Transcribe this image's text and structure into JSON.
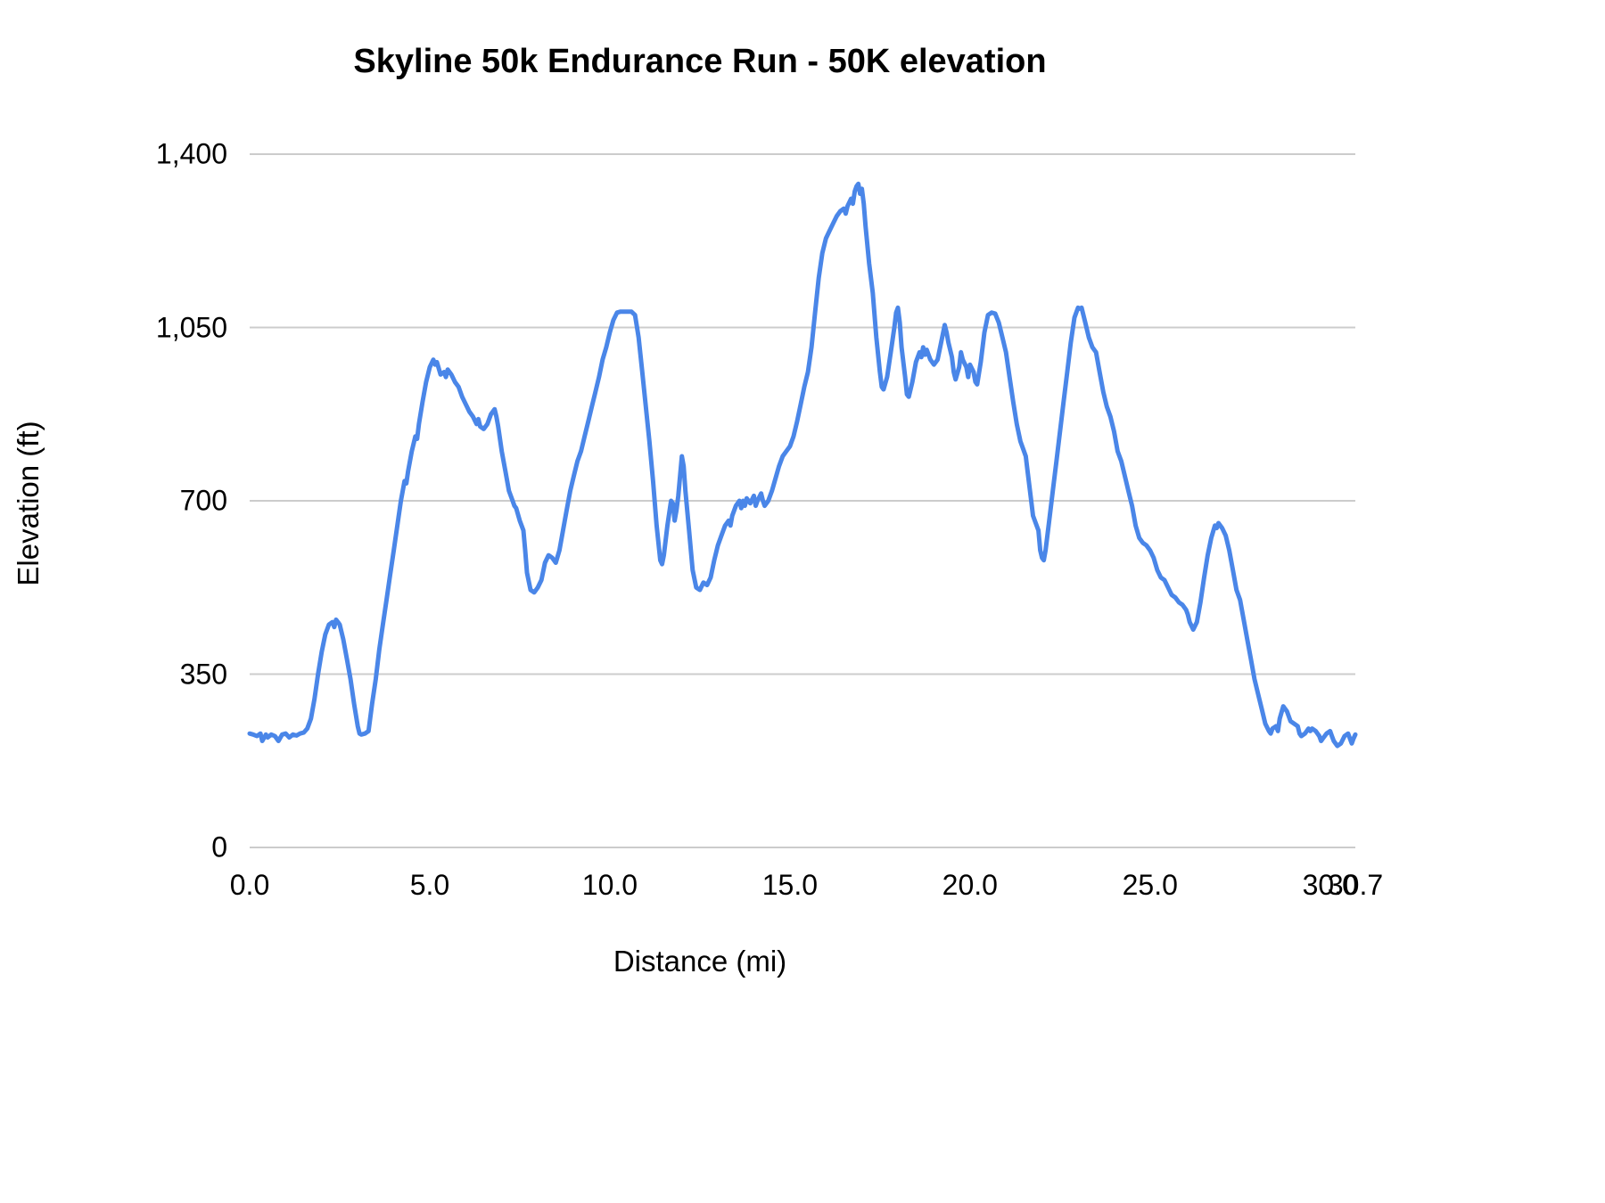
{
  "chart_data": {
    "type": "line",
    "title": "Skyline 50k Endurance Run - 50K elevation",
    "xlabel": "Distance (mi)",
    "ylabel": "Elevation (ft)",
    "xlim": [
      0,
      30.7
    ],
    "ylim": [
      0,
      1400
    ],
    "grid": true,
    "legend": "none",
    "line_color": "#4a86e8",
    "gridline_color": "#cccccc",
    "y_ticks": [
      {
        "value": 0,
        "label": "0"
      },
      {
        "value": 350,
        "label": "350"
      },
      {
        "value": 700,
        "label": "700"
      },
      {
        "value": 1050,
        "label": "1,050"
      },
      {
        "value": 1400,
        "label": "1,400"
      }
    ],
    "x_ticks": [
      {
        "value": 0,
        "label": "0.0"
      },
      {
        "value": 5,
        "label": "5.0"
      },
      {
        "value": 10,
        "label": "10.0"
      },
      {
        "value": 15,
        "label": "15.0"
      },
      {
        "value": 20,
        "label": "20.0"
      },
      {
        "value": 25,
        "label": "25.0"
      },
      {
        "value": 30,
        "label": "30.0"
      },
      {
        "value": 30.7,
        "label": "30.7"
      }
    ],
    "series_name": "50K elevation",
    "points": [
      [
        0.0,
        230
      ],
      [
        0.1,
        228
      ],
      [
        0.2,
        225
      ],
      [
        0.3,
        230
      ],
      [
        0.35,
        215
      ],
      [
        0.45,
        228
      ],
      [
        0.5,
        222
      ],
      [
        0.6,
        228
      ],
      [
        0.7,
        225
      ],
      [
        0.8,
        215
      ],
      [
        0.9,
        228
      ],
      [
        1.0,
        230
      ],
      [
        1.1,
        222
      ],
      [
        1.2,
        228
      ],
      [
        1.3,
        226
      ],
      [
        1.4,
        230
      ],
      [
        1.5,
        232
      ],
      [
        1.6,
        240
      ],
      [
        1.7,
        260
      ],
      [
        1.8,
        300
      ],
      [
        1.9,
        350
      ],
      [
        2.0,
        395
      ],
      [
        2.1,
        430
      ],
      [
        2.2,
        450
      ],
      [
        2.3,
        455
      ],
      [
        2.35,
        445
      ],
      [
        2.4,
        460
      ],
      [
        2.45,
        455
      ],
      [
        2.5,
        450
      ],
      [
        2.6,
        420
      ],
      [
        2.7,
        380
      ],
      [
        2.8,
        340
      ],
      [
        2.9,
        290
      ],
      [
        3.0,
        245
      ],
      [
        3.05,
        230
      ],
      [
        3.1,
        228
      ],
      [
        3.2,
        230
      ],
      [
        3.3,
        235
      ],
      [
        3.4,
        290
      ],
      [
        3.5,
        340
      ],
      [
        3.6,
        400
      ],
      [
        3.7,
        450
      ],
      [
        3.8,
        500
      ],
      [
        3.9,
        550
      ],
      [
        4.0,
        600
      ],
      [
        4.1,
        650
      ],
      [
        4.2,
        700
      ],
      [
        4.3,
        740
      ],
      [
        4.35,
        735
      ],
      [
        4.4,
        760
      ],
      [
        4.5,
        800
      ],
      [
        4.6,
        830
      ],
      [
        4.65,
        825
      ],
      [
        4.7,
        855
      ],
      [
        4.8,
        900
      ],
      [
        4.9,
        940
      ],
      [
        5.0,
        970
      ],
      [
        5.1,
        985
      ],
      [
        5.15,
        975
      ],
      [
        5.2,
        980
      ],
      [
        5.3,
        955
      ],
      [
        5.4,
        960
      ],
      [
        5.45,
        950
      ],
      [
        5.5,
        965
      ],
      [
        5.6,
        955
      ],
      [
        5.7,
        940
      ],
      [
        5.8,
        930
      ],
      [
        5.9,
        910
      ],
      [
        6.0,
        895
      ],
      [
        6.1,
        880
      ],
      [
        6.2,
        870
      ],
      [
        6.3,
        855
      ],
      [
        6.35,
        865
      ],
      [
        6.4,
        850
      ],
      [
        6.5,
        845
      ],
      [
        6.6,
        855
      ],
      [
        6.7,
        875
      ],
      [
        6.8,
        885
      ],
      [
        6.85,
        870
      ],
      [
        6.9,
        850
      ],
      [
        7.0,
        800
      ],
      [
        7.1,
        760
      ],
      [
        7.2,
        720
      ],
      [
        7.3,
        700
      ],
      [
        7.35,
        690
      ],
      [
        7.4,
        685
      ],
      [
        7.5,
        660
      ],
      [
        7.6,
        640
      ],
      [
        7.65,
        600
      ],
      [
        7.7,
        555
      ],
      [
        7.8,
        520
      ],
      [
        7.9,
        515
      ],
      [
        8.0,
        525
      ],
      [
        8.1,
        540
      ],
      [
        8.2,
        575
      ],
      [
        8.3,
        590
      ],
      [
        8.4,
        585
      ],
      [
        8.5,
        575
      ],
      [
        8.6,
        600
      ],
      [
        8.7,
        640
      ],
      [
        8.8,
        680
      ],
      [
        8.9,
        720
      ],
      [
        9.0,
        750
      ],
      [
        9.1,
        780
      ],
      [
        9.2,
        800
      ],
      [
        9.3,
        830
      ],
      [
        9.4,
        860
      ],
      [
        9.5,
        890
      ],
      [
        9.6,
        920
      ],
      [
        9.7,
        950
      ],
      [
        9.8,
        985
      ],
      [
        9.9,
        1010
      ],
      [
        10.0,
        1040
      ],
      [
        10.1,
        1065
      ],
      [
        10.2,
        1080
      ],
      [
        10.3,
        1082
      ],
      [
        10.4,
        1082
      ],
      [
        10.5,
        1082
      ],
      [
        10.6,
        1082
      ],
      [
        10.7,
        1075
      ],
      [
        10.8,
        1030
      ],
      [
        10.9,
        960
      ],
      [
        11.0,
        890
      ],
      [
        11.1,
        820
      ],
      [
        11.2,
        740
      ],
      [
        11.3,
        650
      ],
      [
        11.4,
        580
      ],
      [
        11.45,
        572
      ],
      [
        11.5,
        590
      ],
      [
        11.6,
        650
      ],
      [
        11.7,
        700
      ],
      [
        11.75,
        695
      ],
      [
        11.8,
        660
      ],
      [
        11.85,
        680
      ],
      [
        11.9,
        710
      ],
      [
        11.95,
        750
      ],
      [
        12.0,
        790
      ],
      [
        12.05,
        770
      ],
      [
        12.1,
        720
      ],
      [
        12.2,
        640
      ],
      [
        12.3,
        560
      ],
      [
        12.4,
        525
      ],
      [
        12.5,
        520
      ],
      [
        12.6,
        535
      ],
      [
        12.7,
        530
      ],
      [
        12.8,
        545
      ],
      [
        12.9,
        580
      ],
      [
        13.0,
        610
      ],
      [
        13.1,
        630
      ],
      [
        13.2,
        650
      ],
      [
        13.3,
        660
      ],
      [
        13.35,
        650
      ],
      [
        13.4,
        670
      ],
      [
        13.5,
        690
      ],
      [
        13.6,
        700
      ],
      [
        13.65,
        685
      ],
      [
        13.7,
        700
      ],
      [
        13.75,
        690
      ],
      [
        13.8,
        705
      ],
      [
        13.9,
        695
      ],
      [
        14.0,
        710
      ],
      [
        14.05,
        690
      ],
      [
        14.1,
        700
      ],
      [
        14.2,
        715
      ],
      [
        14.25,
        700
      ],
      [
        14.3,
        690
      ],
      [
        14.4,
        700
      ],
      [
        14.5,
        720
      ],
      [
        14.6,
        745
      ],
      [
        14.7,
        770
      ],
      [
        14.8,
        790
      ],
      [
        14.9,
        800
      ],
      [
        15.0,
        810
      ],
      [
        15.1,
        830
      ],
      [
        15.2,
        860
      ],
      [
        15.3,
        895
      ],
      [
        15.4,
        930
      ],
      [
        15.5,
        960
      ],
      [
        15.6,
        1010
      ],
      [
        15.7,
        1080
      ],
      [
        15.8,
        1150
      ],
      [
        15.9,
        1200
      ],
      [
        16.0,
        1230
      ],
      [
        16.1,
        1245
      ],
      [
        16.2,
        1260
      ],
      [
        16.3,
        1275
      ],
      [
        16.4,
        1285
      ],
      [
        16.5,
        1290
      ],
      [
        16.55,
        1280
      ],
      [
        16.6,
        1295
      ],
      [
        16.7,
        1310
      ],
      [
        16.75,
        1300
      ],
      [
        16.8,
        1325
      ],
      [
        16.85,
        1335
      ],
      [
        16.9,
        1340
      ],
      [
        16.95,
        1320
      ],
      [
        17.0,
        1330
      ],
      [
        17.05,
        1300
      ],
      [
        17.1,
        1255
      ],
      [
        17.2,
        1180
      ],
      [
        17.3,
        1120
      ],
      [
        17.4,
        1030
      ],
      [
        17.5,
        960
      ],
      [
        17.55,
        930
      ],
      [
        17.6,
        925
      ],
      [
        17.7,
        950
      ],
      [
        17.8,
        1000
      ],
      [
        17.9,
        1050
      ],
      [
        17.95,
        1080
      ],
      [
        18.0,
        1090
      ],
      [
        18.05,
        1060
      ],
      [
        18.1,
        1010
      ],
      [
        18.2,
        950
      ],
      [
        18.25,
        915
      ],
      [
        18.3,
        910
      ],
      [
        18.4,
        940
      ],
      [
        18.5,
        980
      ],
      [
        18.6,
        1000
      ],
      [
        18.65,
        990
      ],
      [
        18.7,
        1010
      ],
      [
        18.75,
        995
      ],
      [
        18.8,
        1005
      ],
      [
        18.9,
        985
      ],
      [
        19.0,
        975
      ],
      [
        19.1,
        985
      ],
      [
        19.2,
        1020
      ],
      [
        19.3,
        1055
      ],
      [
        19.35,
        1040
      ],
      [
        19.4,
        1020
      ],
      [
        19.5,
        990
      ],
      [
        19.55,
        960
      ],
      [
        19.6,
        945
      ],
      [
        19.7,
        970
      ],
      [
        19.75,
        1000
      ],
      [
        19.8,
        985
      ],
      [
        19.9,
        970
      ],
      [
        19.95,
        950
      ],
      [
        20.0,
        975
      ],
      [
        20.1,
        960
      ],
      [
        20.15,
        940
      ],
      [
        20.2,
        935
      ],
      [
        20.3,
        980
      ],
      [
        20.4,
        1040
      ],
      [
        20.5,
        1075
      ],
      [
        20.6,
        1080
      ],
      [
        20.7,
        1078
      ],
      [
        20.8,
        1060
      ],
      [
        20.9,
        1030
      ],
      [
        21.0,
        1000
      ],
      [
        21.1,
        950
      ],
      [
        21.2,
        900
      ],
      [
        21.3,
        855
      ],
      [
        21.4,
        820
      ],
      [
        21.5,
        800
      ],
      [
        21.55,
        790
      ],
      [
        21.6,
        760
      ],
      [
        21.7,
        700
      ],
      [
        21.75,
        670
      ],
      [
        21.8,
        660
      ],
      [
        21.9,
        640
      ],
      [
        21.95,
        600
      ],
      [
        22.0,
        585
      ],
      [
        22.05,
        580
      ],
      [
        22.1,
        600
      ],
      [
        22.2,
        660
      ],
      [
        22.3,
        720
      ],
      [
        22.4,
        780
      ],
      [
        22.5,
        840
      ],
      [
        22.6,
        900
      ],
      [
        22.7,
        960
      ],
      [
        22.8,
        1020
      ],
      [
        22.9,
        1070
      ],
      [
        23.0,
        1090
      ],
      [
        23.05,
        1088
      ],
      [
        23.1,
        1090
      ],
      [
        23.2,
        1060
      ],
      [
        23.3,
        1030
      ],
      [
        23.4,
        1010
      ],
      [
        23.5,
        1000
      ],
      [
        23.6,
        960
      ],
      [
        23.7,
        920
      ],
      [
        23.8,
        890
      ],
      [
        23.9,
        870
      ],
      [
        24.0,
        840
      ],
      [
        24.1,
        800
      ],
      [
        24.2,
        780
      ],
      [
        24.3,
        750
      ],
      [
        24.4,
        720
      ],
      [
        24.5,
        690
      ],
      [
        24.6,
        650
      ],
      [
        24.7,
        625
      ],
      [
        24.8,
        615
      ],
      [
        24.9,
        610
      ],
      [
        25.0,
        600
      ],
      [
        25.1,
        585
      ],
      [
        25.2,
        560
      ],
      [
        25.3,
        545
      ],
      [
        25.4,
        540
      ],
      [
        25.5,
        525
      ],
      [
        25.6,
        510
      ],
      [
        25.7,
        505
      ],
      [
        25.8,
        495
      ],
      [
        25.9,
        490
      ],
      [
        26.0,
        480
      ],
      [
        26.05,
        470
      ],
      [
        26.1,
        455
      ],
      [
        26.2,
        440
      ],
      [
        26.3,
        455
      ],
      [
        26.4,
        495
      ],
      [
        26.5,
        545
      ],
      [
        26.6,
        590
      ],
      [
        26.7,
        625
      ],
      [
        26.8,
        650
      ],
      [
        26.85,
        645
      ],
      [
        26.9,
        655
      ],
      [
        27.0,
        645
      ],
      [
        27.1,
        630
      ],
      [
        27.2,
        600
      ],
      [
        27.3,
        560
      ],
      [
        27.4,
        520
      ],
      [
        27.5,
        500
      ],
      [
        27.6,
        460
      ],
      [
        27.7,
        420
      ],
      [
        27.8,
        380
      ],
      [
        27.9,
        340
      ],
      [
        28.0,
        310
      ],
      [
        28.1,
        280
      ],
      [
        28.2,
        250
      ],
      [
        28.3,
        235
      ],
      [
        28.35,
        230
      ],
      [
        28.4,
        240
      ],
      [
        28.5,
        245
      ],
      [
        28.55,
        235
      ],
      [
        28.6,
        260
      ],
      [
        28.7,
        285
      ],
      [
        28.75,
        280
      ],
      [
        28.8,
        275
      ],
      [
        28.9,
        255
      ],
      [
        29.0,
        250
      ],
      [
        29.1,
        245
      ],
      [
        29.15,
        230
      ],
      [
        29.2,
        225
      ],
      [
        29.3,
        230
      ],
      [
        29.4,
        240
      ],
      [
        29.45,
        235
      ],
      [
        29.5,
        240
      ],
      [
        29.6,
        235
      ],
      [
        29.7,
        225
      ],
      [
        29.75,
        215
      ],
      [
        29.8,
        220
      ],
      [
        29.9,
        230
      ],
      [
        30.0,
        235
      ],
      [
        30.05,
        225
      ],
      [
        30.1,
        215
      ],
      [
        30.2,
        205
      ],
      [
        30.3,
        210
      ],
      [
        30.4,
        225
      ],
      [
        30.5,
        230
      ],
      [
        30.55,
        220
      ],
      [
        30.6,
        210
      ],
      [
        30.65,
        220
      ],
      [
        30.7,
        228
      ]
    ]
  }
}
